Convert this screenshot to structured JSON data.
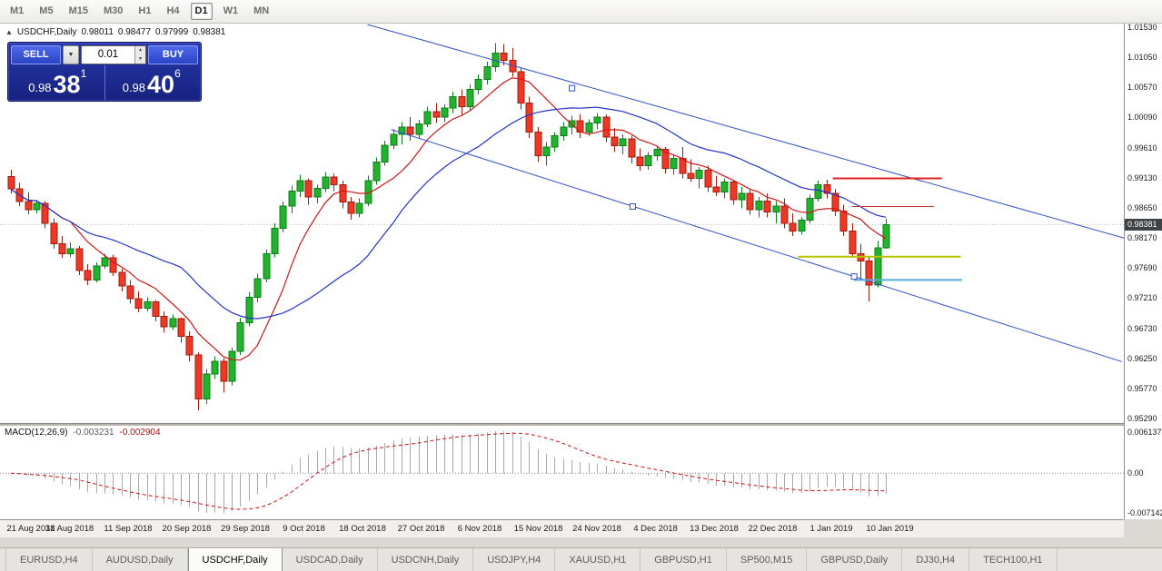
{
  "toolbar": {
    "timeframes": [
      "M1",
      "M5",
      "M15",
      "M30",
      "H1",
      "H4",
      "D1",
      "W1",
      "MN"
    ],
    "active": "D1"
  },
  "icons": {
    "panel_toggle": "▲",
    "dropdown_arrow": "▼",
    "spinner_up": "▲",
    "spinner_down": "▼"
  },
  "chart": {
    "symbol_title": "USDCHF,Daily",
    "ohlc": {
      "open": "0.98011",
      "high": "0.98477",
      "low": "0.97999",
      "close": "0.98381"
    },
    "trade_panel": {
      "sell_label": "SELL",
      "buy_label": "BUY",
      "volume": "0.01",
      "bid_small": "0.98",
      "bid_big": "38",
      "bid_sup": "1",
      "ask_small": "0.98",
      "ask_big": "40",
      "ask_sup": "6"
    },
    "price_axis": {
      "ticks": [
        "1.01530",
        "1.01050",
        "1.00570",
        "1.00090",
        "0.99610",
        "0.99130",
        "0.98650",
        "0.98170",
        "0.97690",
        "0.97210",
        "0.96730",
        "0.96250",
        "0.95770",
        "0.95290"
      ],
      "current": "0.98381"
    },
    "dates": [
      "21 Aug 2018",
      "31 Aug 2018",
      "11 Sep 2018",
      "20 Sep 2018",
      "29 Sep 2018",
      "9 Oct 2018",
      "18 Oct 2018",
      "27 Oct 2018",
      "6 Nov 2018",
      "15 Nov 2018",
      "24 Nov 2018",
      "4 Dec 2018",
      "13 Dec 2018",
      "22 Dec 2018",
      "1 Jan 2019",
      "10 Jan 2019"
    ]
  },
  "macd": {
    "name": "MACD(12,26,9)",
    "main": "-0.003231",
    "signal": "-0.002904",
    "axis_top": "0.006137",
    "axis_zero": "0.00",
    "axis_bottom": "-0.007142"
  },
  "tabs": {
    "items": [
      "EURUSD,H4",
      "AUDUSD,Daily",
      "USDCHF,Daily",
      "USDCAD,Daily",
      "USDCNH,Daily",
      "USDJPY,H4",
      "XAUUSD,H1",
      "GBPUSD,H1",
      "SP500,M15",
      "GBPUSD,Daily",
      "DJ30,H4",
      "TECH100,H1"
    ],
    "active": "USDCHF,Daily"
  },
  "chart_data": {
    "type": "candlestick",
    "symbol": "USDCHF",
    "timeframe": "Daily",
    "title": "USDCHF,Daily",
    "price_range": [
      0.95217,
      1.01588
    ],
    "x_labels": [
      "21 Aug 2018",
      "31 Aug 2018",
      "11 Sep 2018",
      "20 Sep 2018",
      "29 Sep 2018",
      "9 Oct 2018",
      "18 Oct 2018",
      "27 Oct 2018",
      "6 Nov 2018",
      "15 Nov 2018",
      "24 Nov 2018",
      "4 Dec 2018",
      "13 Dec 2018",
      "22 Dec 2018",
      "1 Jan 2019",
      "10 Jan 2019"
    ],
    "candles": [
      [
        0.9915,
        0.9926,
        0.9888,
        0.9895
      ],
      [
        0.9895,
        0.9905,
        0.9868,
        0.9875
      ],
      [
        0.9875,
        0.989,
        0.9855,
        0.9862
      ],
      [
        0.9862,
        0.9878,
        0.9856,
        0.9872
      ],
      [
        0.9872,
        0.9876,
        0.9832,
        0.984
      ],
      [
        0.984,
        0.9848,
        0.98,
        0.9808
      ],
      [
        0.9808,
        0.982,
        0.9785,
        0.9792
      ],
      [
        0.9792,
        0.981,
        0.9786,
        0.98
      ],
      [
        0.98,
        0.9804,
        0.9758,
        0.9765
      ],
      [
        0.9765,
        0.9775,
        0.9742,
        0.975
      ],
      [
        0.975,
        0.9778,
        0.9746,
        0.9772
      ],
      [
        0.9772,
        0.9792,
        0.9768,
        0.9785
      ],
      [
        0.9785,
        0.979,
        0.9756,
        0.9762
      ],
      [
        0.9762,
        0.9768,
        0.9732,
        0.974
      ],
      [
        0.974,
        0.975,
        0.9712,
        0.972
      ],
      [
        0.972,
        0.9732,
        0.9698,
        0.9705
      ],
      [
        0.9705,
        0.9722,
        0.97,
        0.9715
      ],
      [
        0.9715,
        0.9718,
        0.9684,
        0.9692
      ],
      [
        0.9692,
        0.97,
        0.9666,
        0.9675
      ],
      [
        0.9675,
        0.9695,
        0.967,
        0.9688
      ],
      [
        0.9688,
        0.969,
        0.965,
        0.966
      ],
      [
        0.966,
        0.9668,
        0.962,
        0.963
      ],
      [
        0.963,
        0.9635,
        0.9542,
        0.956
      ],
      [
        0.956,
        0.9608,
        0.9552,
        0.96
      ],
      [
        0.96,
        0.9628,
        0.9592,
        0.962
      ],
      [
        0.962,
        0.9625,
        0.957,
        0.9588
      ],
      [
        0.9588,
        0.9642,
        0.9582,
        0.9636
      ],
      [
        0.9636,
        0.969,
        0.963,
        0.9682
      ],
      [
        0.9682,
        0.973,
        0.9676,
        0.9722
      ],
      [
        0.9722,
        0.976,
        0.9714,
        0.9752
      ],
      [
        0.9752,
        0.9798,
        0.9746,
        0.9792
      ],
      [
        0.9792,
        0.984,
        0.9786,
        0.9832
      ],
      [
        0.9832,
        0.9875,
        0.9826,
        0.9868
      ],
      [
        0.9868,
        0.99,
        0.9856,
        0.9892
      ],
      [
        0.9892,
        0.9918,
        0.9882,
        0.9908
      ],
      [
        0.9908,
        0.9912,
        0.987,
        0.9882
      ],
      [
        0.9882,
        0.9902,
        0.9872,
        0.9896
      ],
      [
        0.9896,
        0.9922,
        0.989,
        0.9914
      ],
      [
        0.9914,
        0.992,
        0.9892,
        0.9902
      ],
      [
        0.9902,
        0.9908,
        0.9864,
        0.9874
      ],
      [
        0.9874,
        0.9882,
        0.9846,
        0.9856
      ],
      [
        0.9856,
        0.988,
        0.985,
        0.9872
      ],
      [
        0.9872,
        0.9916,
        0.9868,
        0.9908
      ],
      [
        0.9908,
        0.9945,
        0.9902,
        0.9938
      ],
      [
        0.9938,
        0.9972,
        0.9932,
        0.9965
      ],
      [
        0.9965,
        0.999,
        0.9958,
        0.9982
      ],
      [
        0.9982,
        1.0002,
        0.9966,
        0.9994
      ],
      [
        0.9994,
        1.001,
        0.9972,
        0.9982
      ],
      [
        0.9982,
        1.0005,
        0.9975,
        0.9999
      ],
      [
        0.9999,
        1.0026,
        0.9994,
        1.0018
      ],
      [
        1.0018,
        1.0032,
        1.0,
        1.001
      ],
      [
        1.001,
        1.003,
        1.0002,
        1.0024
      ],
      [
        1.0024,
        1.005,
        1.0016,
        1.0042
      ],
      [
        1.0042,
        1.0054,
        1.0012,
        1.0026
      ],
      [
        1.0026,
        1.0062,
        1.002,
        1.0054
      ],
      [
        1.0054,
        1.0078,
        1.0046,
        1.007
      ],
      [
        1.007,
        1.0098,
        1.0062,
        1.009
      ],
      [
        1.009,
        1.0128,
        1.0082,
        1.0112
      ],
      [
        1.0112,
        1.0126,
        1.0092,
        1.01
      ],
      [
        1.01,
        1.012,
        1.0074,
        1.0082
      ],
      [
        1.0082,
        1.0088,
        1.0022,
        1.0032
      ],
      [
        1.0032,
        1.0042,
        0.9976,
        0.9986
      ],
      [
        0.9986,
        0.9994,
        0.9938,
        0.9948
      ],
      [
        0.9948,
        0.997,
        0.9932,
        0.9962
      ],
      [
        0.9962,
        0.9986,
        0.9954,
        0.998
      ],
      [
        0.998,
        1.0002,
        0.9972,
        0.9994
      ],
      [
        0.9994,
        1.0012,
        0.9982,
        1.0004
      ],
      [
        1.0004,
        1.0014,
        0.9976,
        0.9986
      ],
      [
        0.9986,
        1.0006,
        0.998,
        1.0
      ],
      [
        1.0,
        1.0016,
        0.999,
        1.001
      ],
      [
        1.001,
        1.0014,
        0.997,
        0.9978
      ],
      [
        0.9978,
        0.9992,
        0.9954,
        0.9964
      ],
      [
        0.9964,
        0.9982,
        0.995,
        0.9975
      ],
      [
        0.9975,
        0.998,
        0.9936,
        0.9946
      ],
      [
        0.9946,
        0.996,
        0.9924,
        0.9932
      ],
      [
        0.9932,
        0.9954,
        0.9926,
        0.9948
      ],
      [
        0.9948,
        0.9964,
        0.994,
        0.9958
      ],
      [
        0.9958,
        0.9962,
        0.992,
        0.9928
      ],
      [
        0.9928,
        0.995,
        0.9918,
        0.9944
      ],
      [
        0.9944,
        0.9962,
        0.9912,
        0.992
      ],
      [
        0.992,
        0.9942,
        0.9906,
        0.9912
      ],
      [
        0.9912,
        0.993,
        0.9896,
        0.9925
      ],
      [
        0.9925,
        0.9932,
        0.989,
        0.9898
      ],
      [
        0.9898,
        0.9916,
        0.9884,
        0.989
      ],
      [
        0.989,
        0.9912,
        0.988,
        0.9906
      ],
      [
        0.9906,
        0.991,
        0.987,
        0.9878
      ],
      [
        0.9878,
        0.9898,
        0.9864,
        0.9888
      ],
      [
        0.9888,
        0.9894,
        0.9854,
        0.9862
      ],
      [
        0.9862,
        0.9882,
        0.985,
        0.9876
      ],
      [
        0.9876,
        0.9888,
        0.985,
        0.9858
      ],
      [
        0.9858,
        0.9876,
        0.984,
        0.9868
      ],
      [
        0.9868,
        0.988,
        0.9832,
        0.984
      ],
      [
        0.984,
        0.9856,
        0.982,
        0.9828
      ],
      [
        0.9828,
        0.985,
        0.9822,
        0.9845
      ],
      [
        0.9845,
        0.9886,
        0.984,
        0.988
      ],
      [
        0.988,
        0.9908,
        0.9875,
        0.9902
      ],
      [
        0.9902,
        0.991,
        0.988,
        0.9888
      ],
      [
        0.9888,
        0.9895,
        0.9852,
        0.986
      ],
      [
        0.986,
        0.987,
        0.982,
        0.9828
      ],
      [
        0.9828,
        0.984,
        0.9785,
        0.9792
      ],
      [
        0.9792,
        0.9808,
        0.9752,
        0.978
      ],
      [
        0.978,
        0.9788,
        0.9716,
        0.9742
      ],
      [
        0.9742,
        0.9812,
        0.9738,
        0.9801
      ],
      [
        0.98011,
        0.98477,
        0.97999,
        0.98381
      ]
    ],
    "colors": {
      "up": "#21b32b",
      "up_dark": "#0b7d18",
      "down": "#ee3825",
      "down_dark": "#9e1e0e",
      "trend": "#3352c8",
      "macd_hist": "#a8a8a8",
      "macd_signal": "#cc1111",
      "current_line": "#c0c0c0"
    },
    "overlays": {
      "ma_fast": {
        "type": "sma",
        "period": 8,
        "color": "#d01616"
      },
      "ma_slow": {
        "type": "sma",
        "period": 21,
        "color": "#2334cc"
      },
      "trendlines": [
        {
          "x1f": 0.327,
          "p1": 1.01573,
          "x2f": 1.0,
          "p2": 0.98168
        },
        {
          "x1f": 0.348,
          "p1": 0.99899,
          "x2f": 0.998,
          "p2": 0.96197
        }
      ],
      "markers": [
        {
          "xf": 0.509,
          "p": 1.00558
        },
        {
          "xf": 0.563,
          "p": 0.98671
        },
        {
          "xf": 0.76,
          "p": 0.97554
        }
      ],
      "hlines": [
        {
          "p": 0.9912,
          "x1f": 0.741,
          "x2f": 0.838,
          "color": "#e02222",
          "w": 2
        },
        {
          "p": 0.9867,
          "x1f": 0.758,
          "x2f": 0.831,
          "color": "#c03b2a",
          "w": 1
        },
        {
          "p": 0.9787,
          "x1f": 0.71,
          "x2f": 0.855,
          "color": "#b5c400",
          "w": 2
        },
        {
          "p": 0.975,
          "x1f": 0.76,
          "x2f": 0.856,
          "color": "#58aadf",
          "w": 2
        }
      ]
    },
    "indicator": {
      "type": "macd",
      "fast": 12,
      "slow": 26,
      "signal": 9,
      "current_main": -0.003231,
      "current_signal": -0.002904
    }
  }
}
